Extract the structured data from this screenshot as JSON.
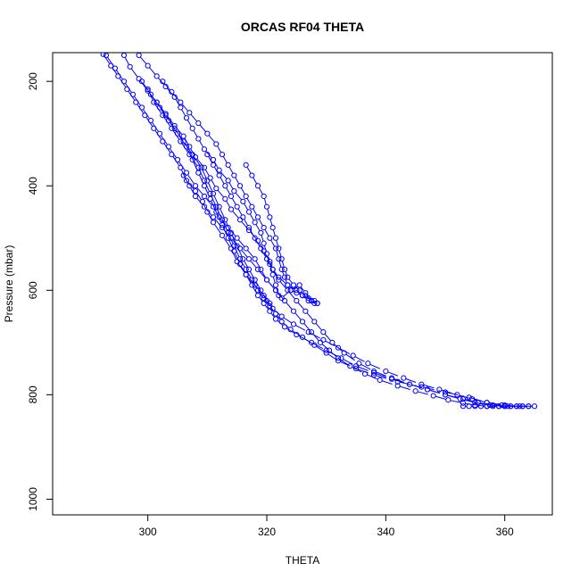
{
  "chart_data": {
    "type": "scatter",
    "title": "ORCAS RF04 THETA",
    "xlabel": "THETA",
    "ylabel": "Pressure (mbar)",
    "xlim": [
      284,
      368
    ],
    "ylim": [
      1030,
      145
    ],
    "y_reversed": true,
    "x_ticks": [
      300,
      320,
      340,
      360
    ],
    "y_ticks": [
      200,
      400,
      600,
      800,
      1000
    ],
    "grid": false,
    "marker": "open-circle",
    "color": "#0000ff",
    "series": [
      {
        "x": [
          292.5,
          293.8,
          295.0,
          296.5,
          298.0,
          299.5,
          301.0,
          302.5,
          304.0,
          305.5,
          306.5,
          308.0,
          309.2,
          310.0,
          311.0,
          312.5,
          314.0,
          315.0,
          316.5,
          318.0,
          319.5,
          320.5
        ],
        "y": [
          148,
          170,
          190,
          215,
          240,
          265,
          290,
          315,
          340,
          365,
          390,
          410,
          430,
          450,
          470,
          495,
          520,
          545,
          570,
          590,
          610,
          625
        ]
      },
      {
        "x": [
          293.0,
          294.5,
          296.0,
          297.5,
          299.0,
          300.5,
          302.0,
          303.5,
          305.0,
          306.5,
          308.0,
          309.5,
          311.0,
          312.0,
          313.5,
          315.0,
          316.5,
          318.0,
          319.0,
          320.0,
          321.5,
          322.5,
          324.0,
          325.5,
          326.5,
          327.5
        ],
        "y": [
          150,
          175,
          200,
          225,
          250,
          275,
          300,
          325,
          350,
          375,
          400,
          420,
          440,
          460,
          480,
          500,
          520,
          540,
          560,
          580,
          600,
          615,
          600,
          590,
          605,
          620
        ]
      },
      {
        "x": [
          296.0,
          297.0,
          298.5,
          300.0,
          301.5,
          303.0,
          304.5,
          306.0,
          307.0,
          308.0,
          309.5,
          310.5,
          311.5,
          313.0,
          314.0,
          315.5,
          317.0,
          318.5,
          319.5,
          320.5,
          321.0,
          322.0,
          323.5,
          325.0,
          326.0,
          327.0,
          328.0
        ],
        "y": [
          150,
          172,
          195,
          218,
          240,
          262,
          285,
          305,
          325,
          345,
          365,
          385,
          405,
          425,
          445,
          465,
          485,
          505,
          525,
          545,
          560,
          575,
          590,
          600,
          610,
          620,
          625
        ]
      },
      {
        "x": [
          298.5,
          300.0,
          301.5,
          303.0,
          304.5,
          305.5,
          306.5,
          307.5,
          308.5,
          309.5,
          311.0,
          312.0,
          313.5,
          314.5,
          316.0,
          317.0,
          318.0,
          319.0,
          319.5,
          320.0,
          320.5,
          321.0,
          321.5,
          322.0
        ],
        "y": [
          150,
          170,
          190,
          210,
          230,
          250,
          270,
          290,
          310,
          330,
          350,
          370,
          390,
          410,
          430,
          450,
          470,
          490,
          510,
          530,
          550,
          570,
          590,
          610
        ]
      },
      {
        "x": [
          302.5,
          304.0,
          305.5,
          307.0,
          308.5,
          310.0,
          311.5,
          312.5,
          313.5,
          314.5,
          315.5,
          316.5,
          317.5,
          318.5,
          319.5,
          320.5,
          321.5,
          322.0,
          322.5,
          323.0,
          323.5,
          324.0,
          325.0,
          326.0,
          327.0,
          328.0,
          328.5
        ],
        "y": [
          200,
          220,
          240,
          260,
          280,
          300,
          320,
          340,
          360,
          380,
          400,
          420,
          440,
          460,
          480,
          500,
          520,
          540,
          560,
          575,
          590,
          600,
          605,
          610,
          615,
          620,
          625
        ]
      },
      {
        "x": [
          316.5,
          317.5,
          318.5,
          319.5,
          320.0,
          320.5,
          321.0,
          321.5,
          322.0,
          322.5,
          323.0,
          323.5,
          324.5,
          325.5,
          326.5,
          327.5,
          328.5
        ],
        "y": [
          360,
          380,
          400,
          420,
          440,
          460,
          480,
          500,
          520,
          540,
          560,
          575,
          590,
          600,
          610,
          620,
          625
        ]
      },
      {
        "x": [
          300.0,
          301.0,
          302.5,
          304.0,
          305.5,
          307.0,
          308.5,
          309.5,
          310.5,
          311.5,
          312.5,
          313.5,
          314.5,
          315.5,
          316.5,
          317.5,
          318.5,
          319.5,
          320.5,
          321.5,
          322.5,
          324.0,
          326.0,
          328.0,
          330.0,
          332.0,
          335.0,
          338.0,
          342.0,
          346.0,
          350.0,
          354.0,
          357.0,
          360.0,
          362.0,
          364.0
        ],
        "y": [
          215,
          240,
          265,
          290,
          315,
          340,
          365,
          390,
          415,
          440,
          465,
          490,
          515,
          540,
          560,
          580,
          600,
          615,
          630,
          645,
          660,
          675,
          690,
          705,
          720,
          735,
          750,
          762,
          775,
          785,
          795,
          805,
          815,
          820,
          822,
          822
        ]
      },
      {
        "x": [
          299.0,
          300.5,
          302.0,
          303.5,
          305.0,
          306.5,
          307.5,
          308.5,
          309.5,
          310.5,
          311.5,
          312.5,
          313.5,
          314.5,
          315.5,
          316.5,
          317.5,
          318.5,
          319.5,
          320.5,
          321.5,
          323.0,
          325.0,
          327.5,
          330.0,
          332.5,
          335.0,
          338.0,
          341.0,
          344.0,
          347.0,
          350.0,
          353.0,
          355.5,
          358.0,
          360.5,
          363.0
        ],
        "y": [
          200,
          225,
          250,
          275,
          300,
          325,
          350,
          375,
          400,
          425,
          450,
          475,
          500,
          525,
          550,
          570,
          590,
          610,
          625,
          640,
          655,
          670,
          685,
          700,
          715,
          730,
          745,
          758,
          770,
          780,
          790,
          800,
          808,
          815,
          820,
          822,
          822
        ]
      },
      {
        "x": [
          301.5,
          303.0,
          304.5,
          306.0,
          307.5,
          309.0,
          310.0,
          311.0,
          312.0,
          313.0,
          314.0,
          315.0,
          316.0,
          317.0,
          318.0,
          319.0,
          320.0,
          321.0,
          322.5,
          324.5,
          327.0,
          329.5,
          332.0,
          334.5,
          337.0,
          340.0,
          343.0,
          346.0,
          349.0,
          352.0,
          354.5,
          357.0,
          359.5
        ],
        "y": [
          240,
          265,
          290,
          315,
          340,
          365,
          390,
          415,
          440,
          465,
          490,
          515,
          540,
          560,
          580,
          600,
          620,
          635,
          650,
          665,
          680,
          695,
          710,
          725,
          740,
          755,
          768,
          780,
          790,
          800,
          808,
          815,
          820
        ]
      },
      {
        "x": [
          310.0,
          311.0,
          312.0,
          313.0,
          314.0,
          315.0,
          316.0,
          317.0,
          318.0,
          319.0,
          320.0,
          321.0,
          322.0,
          323.5,
          325.0,
          326.5,
          328.0,
          329.5,
          331.0,
          333.0,
          335.5,
          338.0,
          341.0,
          344.0,
          347.0,
          350.0,
          352.5,
          355.0,
          357.5,
          360.0,
          362.5,
          365.0
        ],
        "y": [
          340,
          360,
          380,
          400,
          420,
          440,
          460,
          480,
          500,
          520,
          540,
          560,
          580,
          600,
          620,
          640,
          660,
          680,
          700,
          720,
          740,
          755,
          768,
          780,
          790,
          800,
          808,
          815,
          820,
          822,
          822,
          822
        ]
      },
      {
        "x": [
          306.0,
          307.0,
          308.0,
          309.5,
          311.0,
          312.5,
          314.0,
          315.5,
          317.0,
          318.5,
          320.0,
          321.5,
          323.0,
          324.5,
          326.0,
          327.5,
          329.0,
          330.5,
          332.0,
          334.0,
          336.5,
          339.0,
          342.0,
          345.0,
          348.0,
          350.5,
          353.0,
          355.0,
          357.0,
          359.0,
          361.0
        ],
        "y": [
          380,
          400,
          420,
          440,
          460,
          480,
          500,
          520,
          540,
          560,
          580,
          600,
          620,
          640,
          660,
          680,
          700,
          715,
          730,
          745,
          760,
          772,
          783,
          793,
          802,
          810,
          816,
          820,
          822,
          822,
          822
        ]
      },
      {
        "x": [
          353.0,
          354.0,
          355.0,
          356.0,
          357.0,
          358.0,
          359.0,
          360.0,
          361.0,
          362.0,
          363.0,
          364.0
        ],
        "y": [
          822,
          822,
          822,
          822,
          822,
          822,
          822,
          822,
          822,
          822,
          822,
          822
        ]
      }
    ]
  }
}
